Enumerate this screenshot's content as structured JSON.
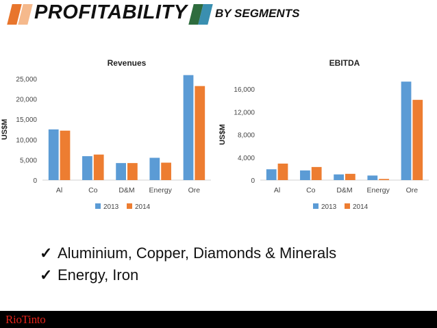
{
  "header": {
    "title": "PROFITABILITY",
    "subtitle": "BY SEGMENTS",
    "stripe_colors_left": [
      "#e8752c",
      "#f5b98c"
    ],
    "stripe_colors_right": [
      "#2e6c3e",
      "#3a8fb0"
    ]
  },
  "chart_data": [
    {
      "type": "bar",
      "title": "Revenues",
      "ylabel": "US$M",
      "xlabel": "",
      "categories": [
        "Al",
        "Co",
        "D&M",
        "Energy",
        "Ore"
      ],
      "series": [
        {
          "name": "2013",
          "values": [
            12500,
            5900,
            4200,
            5500,
            25900
          ],
          "color": "#5b9bd5"
        },
        {
          "name": "2014",
          "values": [
            12200,
            6300,
            4200,
            4300,
            23200
          ],
          "color": "#ed7d31"
        }
      ],
      "ylim": [
        0,
        25000
      ],
      "yticks": [
        0,
        5000,
        10000,
        15000,
        20000,
        25000
      ],
      "ytick_labels": [
        "0",
        "5,000",
        "10,000",
        "15,000",
        "20,000",
        "25,000"
      ],
      "legend_position": "bottom",
      "grid": false
    },
    {
      "type": "bar",
      "title": "EBITDA",
      "ylabel": "US$M",
      "xlabel": "",
      "categories": [
        "Al",
        "Co",
        "D&M",
        "Energy",
        "Ore"
      ],
      "series": [
        {
          "name": "2013",
          "values": [
            1900,
            1700,
            1000,
            800,
            17300
          ],
          "color": "#5b9bd5"
        },
        {
          "name": "2014",
          "values": [
            2900,
            2300,
            1100,
            200,
            14100
          ],
          "color": "#ed7d31"
        }
      ],
      "ylim": [
        0,
        16000
      ],
      "yticks": [
        0,
        4000,
        8000,
        12000,
        16000
      ],
      "ytick_labels": [
        "0",
        "4,000",
        "8,000",
        "12,000",
        "16,000"
      ],
      "legend_position": "bottom",
      "grid": false
    }
  ],
  "bullets": [
    {
      "check": "✓",
      "text": "Aluminium, Copper, Diamonds & Minerals"
    },
    {
      "check": "✓",
      "text": "Energy, Iron"
    }
  ],
  "footer": {
    "logo": "RioTinto"
  }
}
